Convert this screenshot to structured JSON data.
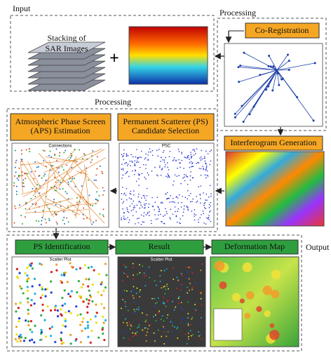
{
  "input": {
    "label": "Input",
    "stack_text": "Stacking of SAR Images",
    "plus": "+"
  },
  "top_processing": {
    "label": "Processing",
    "steps": [
      "Co-Registration",
      "Interferogram Generation"
    ]
  },
  "middle_processing": {
    "label": "Processing",
    "steps": [
      "Atmospheric Phase Screen (APS) Estimation",
      "Permanent Scatterer (PS) Candidate Selection"
    ],
    "plot_titles": [
      "Connections",
      "PSC"
    ]
  },
  "output": {
    "label": "Output",
    "steps": [
      "PS Identification",
      "Result",
      "Deformation Map"
    ],
    "plot_titles": [
      "Scatter Plot",
      "Scatter Plot"
    ]
  }
}
